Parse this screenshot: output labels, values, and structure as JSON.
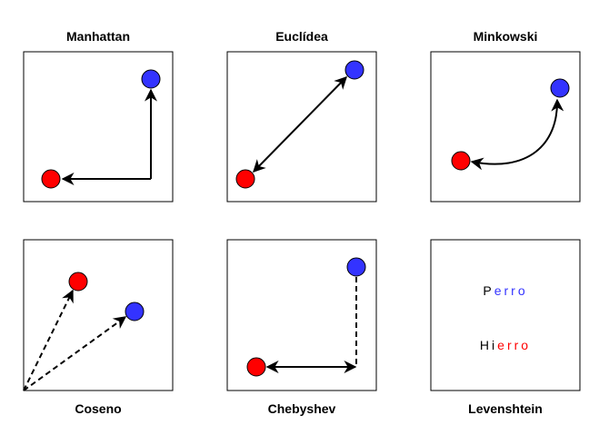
{
  "panels": {
    "manhattan": {
      "title": "Manhattan"
    },
    "euclidea": {
      "title": "Euclídea"
    },
    "minkowski": {
      "title": "Minkowski"
    },
    "coseno": {
      "title": "Coseno"
    },
    "chebyshev": {
      "title": "Chebyshev"
    },
    "levenshtein": {
      "title": "Levenshtein",
      "word1": [
        {
          "char": "P",
          "color": "#000000"
        },
        {
          "char": "e",
          "color": "#3333ff"
        },
        {
          "char": "r",
          "color": "#3333ff"
        },
        {
          "char": "r",
          "color": "#3333ff"
        },
        {
          "char": "o",
          "color": "#3333ff"
        }
      ],
      "word2": [
        {
          "char": "H",
          "color": "#000000"
        },
        {
          "char": "i",
          "color": "#000000"
        },
        {
          "char": "e",
          "color": "#ff0000"
        },
        {
          "char": "r",
          "color": "#ff0000"
        },
        {
          "char": "r",
          "color": "#ff0000"
        },
        {
          "char": "o",
          "color": "#ff0000"
        }
      ]
    }
  },
  "colors": {
    "point_red": "#ff0000",
    "point_blue": "#3333ff",
    "stroke": "#000000"
  }
}
